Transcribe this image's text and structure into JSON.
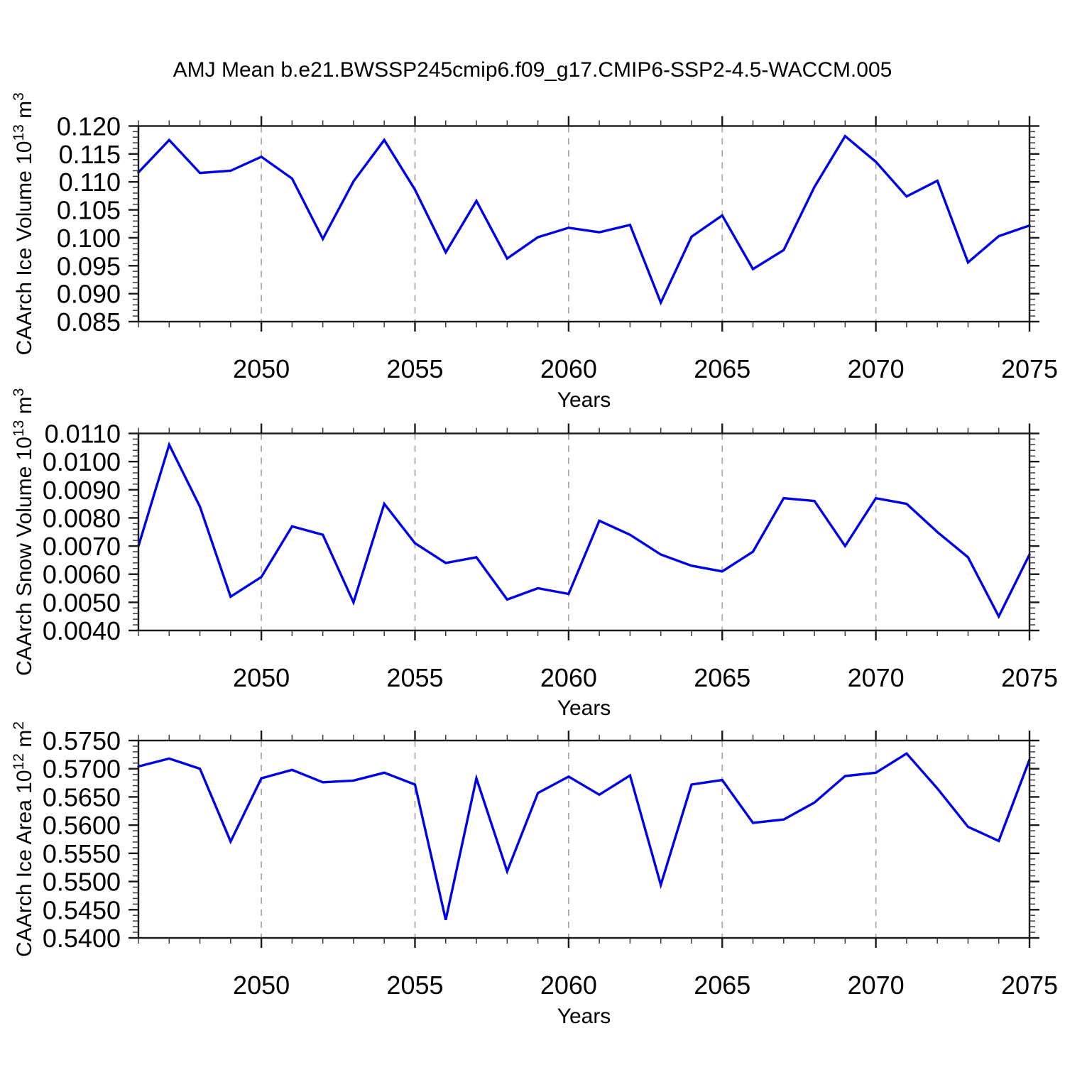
{
  "title": "AMJ Mean b.e21.BWSSP245cmip6.f09_g17.CMIP6-SSP2-4.5-WACCM.005",
  "accent_color": "#0000e8",
  "chart_data": [
    {
      "type": "line",
      "id": "caarch-ice-volume",
      "series_name": "CAArch Ice Volume",
      "ylabel": {
        "prefix": "CAArch Ice Volume 10",
        "sup1": "13",
        "mid": " m",
        "sup2": "3"
      },
      "xlabel": "Years",
      "x": [
        2046,
        2047,
        2048,
        2049,
        2050,
        2051,
        2052,
        2053,
        2054,
        2055,
        2056,
        2057,
        2058,
        2059,
        2060,
        2061,
        2062,
        2063,
        2064,
        2065,
        2066,
        2067,
        2068,
        2069,
        2070,
        2071,
        2072,
        2073,
        2074,
        2075
      ],
      "values": [
        0.1117,
        0.1175,
        0.1116,
        0.112,
        0.1145,
        0.1106,
        0.0998,
        0.1101,
        0.1175,
        0.1086,
        0.0974,
        0.1066,
        0.0963,
        0.1001,
        0.1018,
        0.101,
        0.1023,
        0.0884,
        0.1002,
        0.104,
        0.0944,
        0.0978,
        0.1091,
        0.1182,
        0.1136,
        0.1074,
        0.1102,
        0.0956,
        0.1003,
        0.1022
      ],
      "xlim": [
        2046,
        2075
      ],
      "ylim": [
        0.085,
        0.12
      ],
      "xticks_major": [
        2050,
        2055,
        2060,
        2065,
        2070,
        2075
      ],
      "x_minor_step": 1,
      "ytick_values": [
        0.085,
        0.09,
        0.095,
        0.1,
        0.105,
        0.11,
        0.115,
        0.12
      ],
      "ytick_labels": [
        "0.085",
        "0.090",
        "0.095",
        "0.100",
        "0.105",
        "0.110",
        "0.115",
        "0.120"
      ],
      "y_minor_step": 0.001,
      "line_color": "#0000e8",
      "grid": "vertical-dashed-at-x-majors",
      "legend": "none"
    },
    {
      "type": "line",
      "id": "caarch-snow-volume",
      "series_name": "CAArch Snow Volume",
      "ylabel": {
        "prefix": "CAArch Snow Volume 10",
        "sup1": "13",
        "mid": " m",
        "sup2": "3"
      },
      "xlabel": "Years",
      "x": [
        2046,
        2047,
        2048,
        2049,
        2050,
        2051,
        2052,
        2053,
        2054,
        2055,
        2056,
        2057,
        2058,
        2059,
        2060,
        2061,
        2062,
        2063,
        2064,
        2065,
        2066,
        2067,
        2068,
        2069,
        2070,
        2071,
        2072,
        2073,
        2074,
        2075
      ],
      "values": [
        0.007,
        0.0106,
        0.0084,
        0.0052,
        0.0059,
        0.0077,
        0.0074,
        0.005,
        0.0085,
        0.0071,
        0.0064,
        0.0066,
        0.0051,
        0.0055,
        0.0053,
        0.0079,
        0.0074,
        0.0067,
        0.0063,
        0.0061,
        0.0068,
        0.0087,
        0.0086,
        0.007,
        0.0087,
        0.0085,
        0.0075,
        0.0066,
        0.0045,
        0.0067
      ],
      "xlim": [
        2046,
        2075
      ],
      "ylim": [
        0.004,
        0.011
      ],
      "xticks_major": [
        2050,
        2055,
        2060,
        2065,
        2070,
        2075
      ],
      "x_minor_step": 1,
      "ytick_values": [
        0.004,
        0.005,
        0.006,
        0.007,
        0.008,
        0.009,
        0.01,
        0.011
      ],
      "ytick_labels": [
        "0.0040",
        "0.0050",
        "0.0060",
        "0.0070",
        "0.0080",
        "0.0090",
        "0.0100",
        "0.0110"
      ],
      "y_minor_step": 0.0002,
      "line_color": "#0000e8",
      "grid": "vertical-dashed-at-x-majors",
      "legend": "none"
    },
    {
      "type": "line",
      "id": "caarch-ice-area",
      "series_name": "CAArch Ice Area",
      "ylabel": {
        "prefix": "CAArch Ice Area 10",
        "sup1": "12",
        "mid": " m",
        "sup2": "2"
      },
      "xlabel": "Years",
      "x": [
        2046,
        2047,
        2048,
        2049,
        2050,
        2051,
        2052,
        2053,
        2054,
        2055,
        2056,
        2057,
        2058,
        2059,
        2060,
        2061,
        2062,
        2063,
        2064,
        2065,
        2066,
        2067,
        2068,
        2069,
        2070,
        2071,
        2072,
        2073,
        2074,
        2075
      ],
      "values": [
        0.5704,
        0.5718,
        0.57,
        0.5571,
        0.5683,
        0.5698,
        0.5676,
        0.5679,
        0.5693,
        0.5672,
        0.5432,
        0.5683,
        0.5518,
        0.5657,
        0.5686,
        0.5654,
        0.5688,
        0.5494,
        0.5672,
        0.568,
        0.5604,
        0.561,
        0.564,
        0.5687,
        0.5693,
        0.5727,
        0.5665,
        0.5597,
        0.5572,
        0.5716
      ],
      "xlim": [
        2046,
        2075
      ],
      "ylim": [
        0.54,
        0.575
      ],
      "xticks_major": [
        2050,
        2055,
        2060,
        2065,
        2070,
        2075
      ],
      "x_minor_step": 1,
      "ytick_values": [
        0.54,
        0.545,
        0.55,
        0.555,
        0.56,
        0.565,
        0.57,
        0.575
      ],
      "ytick_labels": [
        "0.5400",
        "0.5450",
        "0.5500",
        "0.5550",
        "0.5600",
        "0.5650",
        "0.5700",
        "0.5750"
      ],
      "y_minor_step": 0.001,
      "line_color": "#0000e8",
      "grid": "vertical-dashed-at-x-majors",
      "legend": "none"
    }
  ]
}
